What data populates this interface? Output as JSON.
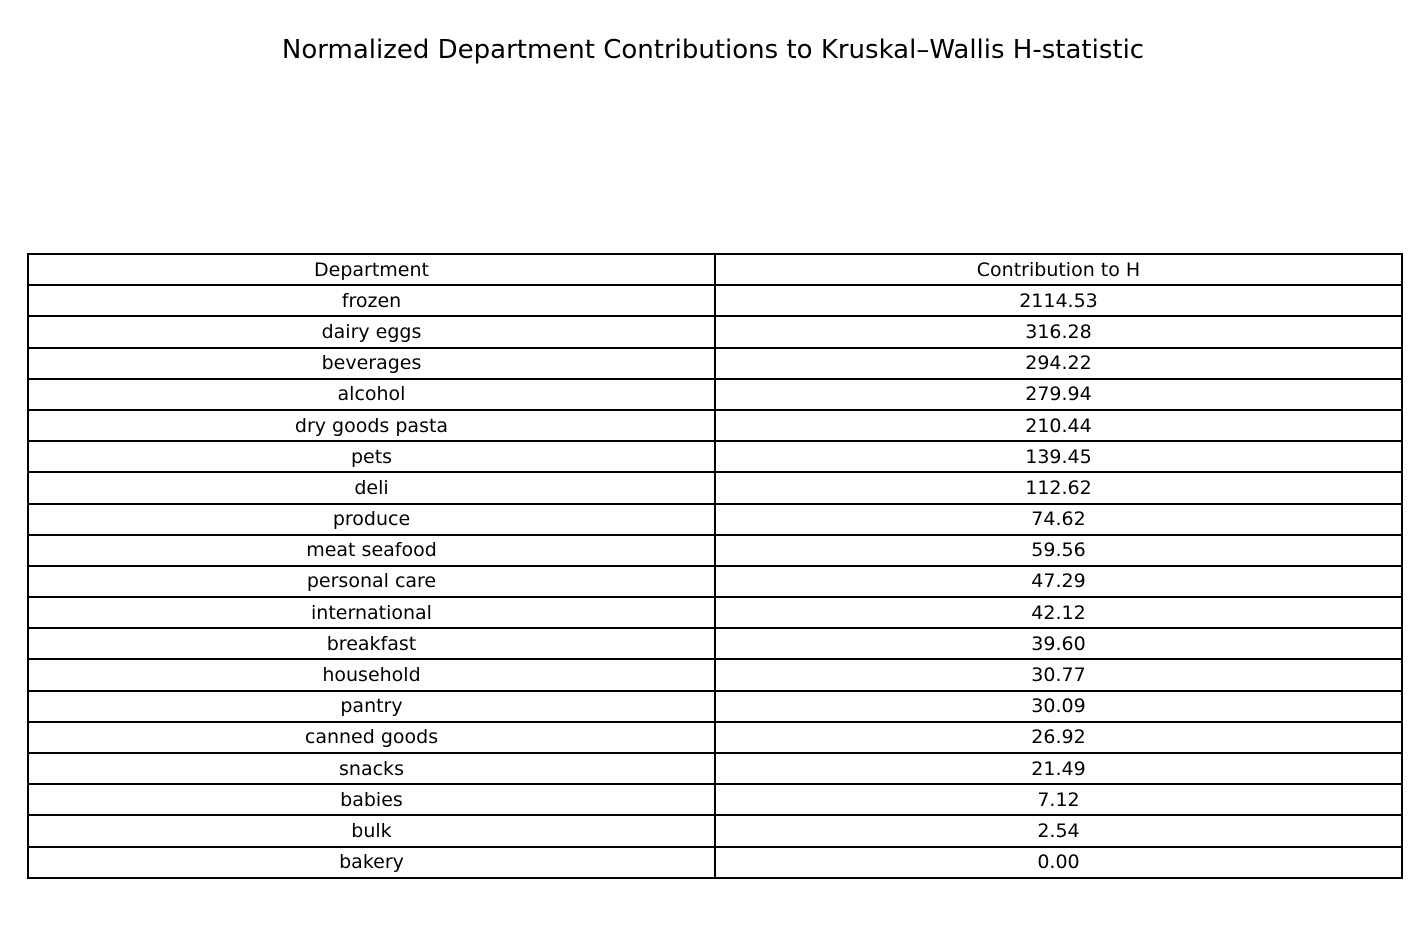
{
  "chart_data": {
    "type": "table",
    "title": "Normalized Department Contributions to Kruskal–Wallis H-statistic",
    "columns": [
      "Department",
      "Contribution to H"
    ],
    "rows": [
      [
        "frozen",
        "2114.53"
      ],
      [
        "dairy eggs",
        "316.28"
      ],
      [
        "beverages",
        "294.22"
      ],
      [
        "alcohol",
        "279.94"
      ],
      [
        "dry goods pasta",
        "210.44"
      ],
      [
        "pets",
        "139.45"
      ],
      [
        "deli",
        "112.62"
      ],
      [
        "produce",
        "74.62"
      ],
      [
        "meat seafood",
        "59.56"
      ],
      [
        "personal care",
        "47.29"
      ],
      [
        "international",
        "42.12"
      ],
      [
        "breakfast",
        "39.60"
      ],
      [
        "household",
        "30.77"
      ],
      [
        "pantry",
        "30.09"
      ],
      [
        "canned goods",
        "26.92"
      ],
      [
        "snacks",
        "21.49"
      ],
      [
        "babies",
        "7.12"
      ],
      [
        "bulk",
        "2.54"
      ],
      [
        "bakery",
        "0.00"
      ]
    ]
  }
}
